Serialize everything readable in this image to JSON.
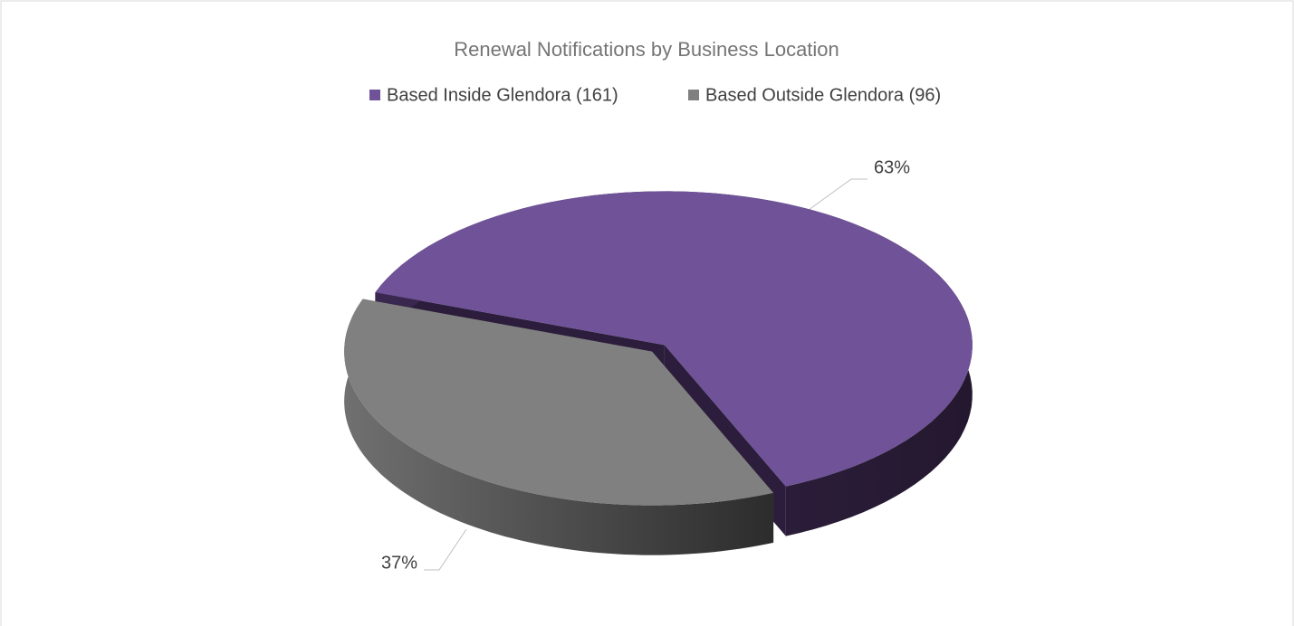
{
  "chart_data": {
    "type": "pie",
    "title": "Renewal Notifications by Business Location",
    "categories": [
      "Based Inside Glendora (161)",
      "Based Outside Glendora (96)"
    ],
    "values": [
      63,
      37
    ],
    "value_labels": [
      "63%",
      "37%"
    ],
    "colors": [
      "#6f5297",
      "#808080"
    ],
    "legend": "top"
  }
}
